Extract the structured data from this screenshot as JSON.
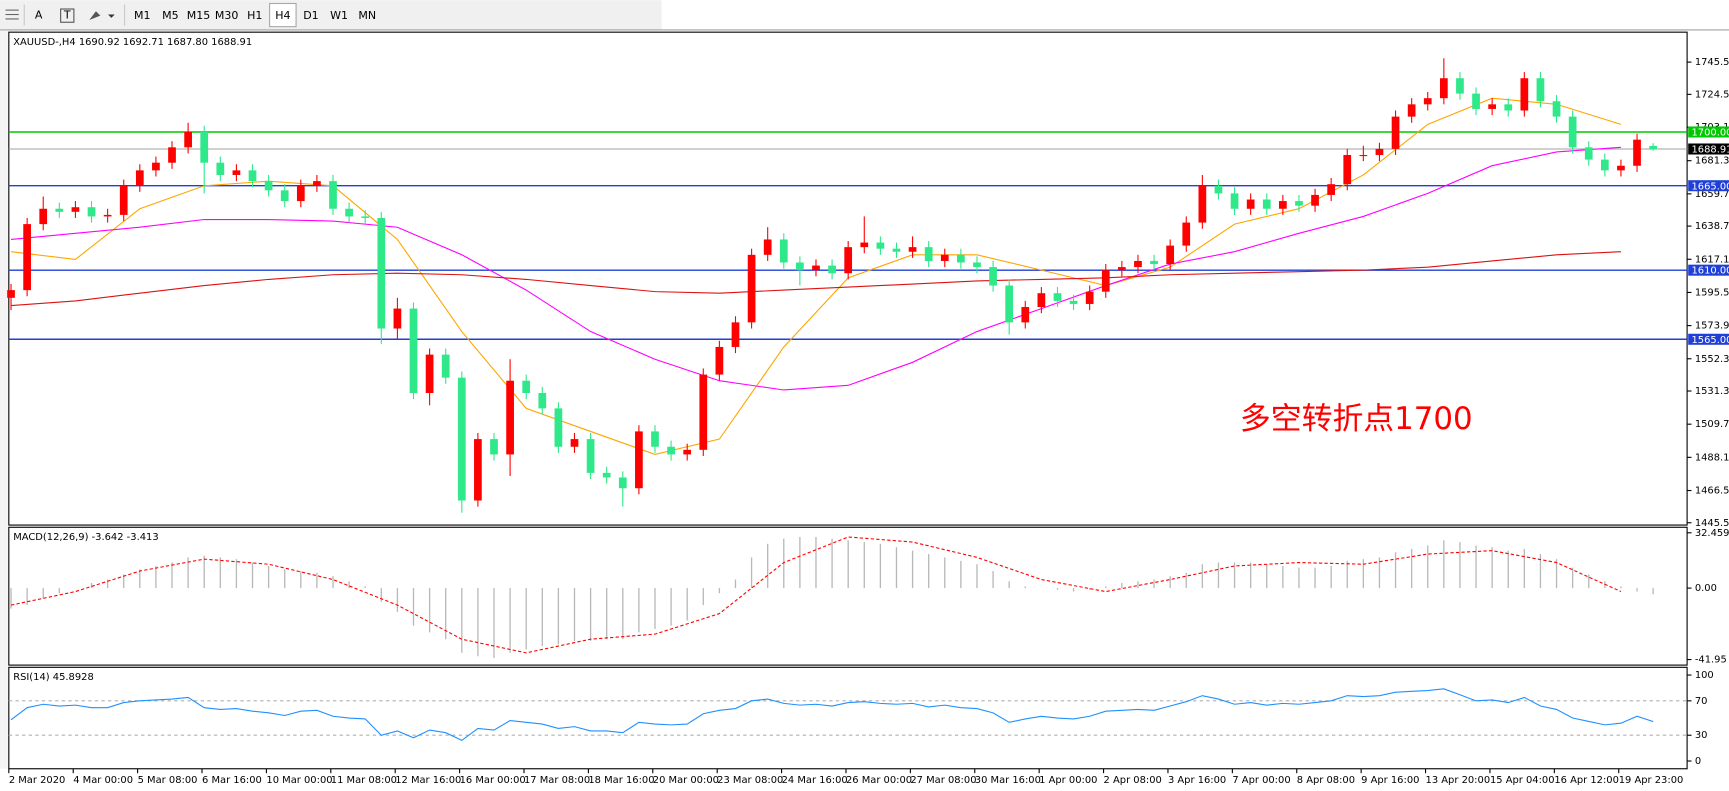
{
  "toolbar": {
    "tools": [
      "A",
      "T"
    ],
    "timeframes": [
      "M1",
      "M5",
      "M15",
      "M30",
      "H1",
      "H4",
      "D1",
      "W1",
      "MN"
    ],
    "active_index": 5
  },
  "chart_data": [
    {
      "type": "candlestick",
      "title": "XAUUSD-,H4  1690.92 1692.71 1687.80 1688.91",
      "categories": [
        "2 Mar 2020",
        "4 Mar 00:00",
        "5 Mar 08:00",
        "6 Mar 16:00",
        "10 Mar 00:00",
        "11 Mar 08:00",
        "12 Mar 16:00",
        "16 Mar 00:00",
        "17 Mar 08:00",
        "18 Mar 16:00",
        "20 Mar 00:00",
        "23 Mar 08:00",
        "24 Mar 16:00",
        "26 Mar 00:00",
        "27 Mar 08:00",
        "30 Mar 16:00",
        "1 Apr 00:00",
        "2 Apr 08:00",
        "3 Apr 16:00",
        "7 Apr 00:00",
        "8 Apr 08:00",
        "9 Apr 16:00",
        "13 Apr 20:00",
        "15 Apr 04:00",
        "16 Apr 12:00",
        "19 Apr 23:00"
      ],
      "up_color": "#ff0000",
      "down_color": "#2ee88a",
      "ohlc": [
        [
          1592,
          1601,
          1584,
          1597
        ],
        [
          1597,
          1644,
          1593,
          1640
        ],
        [
          1640,
          1658,
          1636,
          1650
        ],
        [
          1650,
          1654,
          1644,
          1648
        ],
        [
          1648,
          1655,
          1644,
          1651
        ],
        [
          1651,
          1655,
          1641,
          1645
        ],
        [
          1645,
          1650,
          1641,
          1646
        ],
        [
          1646,
          1669,
          1642,
          1665
        ],
        [
          1665,
          1679,
          1661,
          1675
        ],
        [
          1675,
          1684,
          1671,
          1680
        ],
        [
          1680,
          1694,
          1676,
          1690
        ],
        [
          1690,
          1706,
          1686,
          1700
        ],
        [
          1700,
          1704,
          1660,
          1680
        ],
        [
          1680,
          1684,
          1668,
          1672
        ],
        [
          1672,
          1679,
          1668,
          1675
        ],
        [
          1675,
          1679,
          1664,
          1668
        ],
        [
          1668,
          1672,
          1658,
          1662
        ],
        [
          1662,
          1666,
          1651,
          1655
        ],
        [
          1655,
          1669,
          1651,
          1665
        ],
        [
          1665,
          1672,
          1661,
          1668
        ],
        [
          1668,
          1672,
          1646,
          1650
        ],
        [
          1650,
          1654,
          1641,
          1645
        ],
        [
          1645,
          1649,
          1640,
          1644
        ],
        [
          1644,
          1648,
          1562,
          1572
        ],
        [
          1572,
          1592,
          1565,
          1585
        ],
        [
          1585,
          1589,
          1526,
          1530
        ],
        [
          1530,
          1559,
          1522,
          1555
        ],
        [
          1555,
          1559,
          1536,
          1540
        ],
        [
          1540,
          1544,
          1452,
          1460
        ],
        [
          1460,
          1504,
          1456,
          1500
        ],
        [
          1500,
          1504,
          1486,
          1490
        ],
        [
          1490,
          1552,
          1476,
          1538
        ],
        [
          1538,
          1542,
          1526,
          1530
        ],
        [
          1530,
          1534,
          1516,
          1520
        ],
        [
          1520,
          1524,
          1491,
          1495
        ],
        [
          1495,
          1504,
          1491,
          1500
        ],
        [
          1500,
          1504,
          1474,
          1478
        ],
        [
          1478,
          1482,
          1471,
          1475
        ],
        [
          1475,
          1479,
          1456,
          1468
        ],
        [
          1468,
          1509,
          1464,
          1505
        ],
        [
          1505,
          1509,
          1491,
          1495
        ],
        [
          1495,
          1499,
          1486,
          1490
        ],
        [
          1490,
          1497,
          1486,
          1493
        ],
        [
          1493,
          1546,
          1489,
          1542
        ],
        [
          1542,
          1564,
          1538,
          1560
        ],
        [
          1560,
          1580,
          1556,
          1576
        ],
        [
          1576,
          1624,
          1572,
          1620
        ],
        [
          1620,
          1638,
          1616,
          1630
        ],
        [
          1630,
          1634,
          1611,
          1615
        ],
        [
          1615,
          1619,
          1600,
          1610
        ],
        [
          1610,
          1617,
          1606,
          1613
        ],
        [
          1613,
          1617,
          1604,
          1608
        ],
        [
          1608,
          1629,
          1604,
          1625
        ],
        [
          1625,
          1645,
          1621,
          1628
        ],
        [
          1628,
          1632,
          1620,
          1624
        ],
        [
          1624,
          1628,
          1618,
          1622
        ],
        [
          1622,
          1632,
          1618,
          1625
        ],
        [
          1625,
          1629,
          1612,
          1616
        ],
        [
          1616,
          1624,
          1612,
          1620
        ],
        [
          1620,
          1624,
          1611,
          1615
        ],
        [
          1615,
          1619,
          1608,
          1612
        ],
        [
          1612,
          1616,
          1596,
          1600
        ],
        [
          1600,
          1604,
          1568,
          1576
        ],
        [
          1576,
          1590,
          1572,
          1586
        ],
        [
          1586,
          1599,
          1582,
          1595
        ],
        [
          1595,
          1599,
          1586,
          1590
        ],
        [
          1590,
          1594,
          1584,
          1588
        ],
        [
          1588,
          1600,
          1584,
          1596
        ],
        [
          1596,
          1614,
          1592,
          1610
        ],
        [
          1610,
          1616,
          1606,
          1612
        ],
        [
          1612,
          1620,
          1608,
          1616
        ],
        [
          1616,
          1620,
          1610,
          1614
        ],
        [
          1614,
          1630,
          1610,
          1626
        ],
        [
          1626,
          1645,
          1622,
          1641
        ],
        [
          1641,
          1672,
          1637,
          1665
        ],
        [
          1665,
          1669,
          1656,
          1660
        ],
        [
          1660,
          1664,
          1646,
          1650
        ],
        [
          1650,
          1660,
          1646,
          1656
        ],
        [
          1656,
          1660,
          1646,
          1650
        ],
        [
          1650,
          1659,
          1646,
          1655
        ],
        [
          1655,
          1659,
          1648,
          1652
        ],
        [
          1652,
          1663,
          1648,
          1659
        ],
        [
          1659,
          1670,
          1655,
          1666
        ],
        [
          1666,
          1689,
          1662,
          1685
        ],
        [
          1685,
          1691,
          1681,
          1685
        ],
        [
          1685,
          1693,
          1681,
          1689
        ],
        [
          1689,
          1714,
          1685,
          1710
        ],
        [
          1710,
          1722,
          1706,
          1718
        ],
        [
          1718,
          1726,
          1714,
          1722
        ],
        [
          1722,
          1748,
          1718,
          1735
        ],
        [
          1735,
          1739,
          1721,
          1725
        ],
        [
          1725,
          1729,
          1711,
          1715
        ],
        [
          1715,
          1722,
          1711,
          1718
        ],
        [
          1718,
          1722,
          1710,
          1714
        ],
        [
          1714,
          1739,
          1710,
          1735
        ],
        [
          1735,
          1739,
          1716,
          1720
        ],
        [
          1720,
          1724,
          1706,
          1710
        ],
        [
          1710,
          1714,
          1686,
          1690
        ],
        [
          1690,
          1694,
          1678,
          1682
        ],
        [
          1682,
          1686,
          1671,
          1675
        ],
        [
          1675,
          1682,
          1671,
          1678
        ],
        [
          1678,
          1699,
          1674,
          1695
        ],
        [
          1690.92,
          1692.71,
          1687.8,
          1688.91
        ]
      ],
      "series": [
        {
          "color": "#ffa500",
          "values": [
            1622,
            1617,
            1650,
            1665,
            1668,
            1665,
            1630,
            1570,
            1520,
            1505,
            1490,
            1500,
            1560,
            1605,
            1620,
            1620,
            1610,
            1600,
            1612,
            1640,
            1650,
            1672,
            1705,
            1722,
            1718,
            1705
          ]
        },
        {
          "color": "#ff00ff",
          "values": [
            1630,
            1634,
            1638,
            1643,
            1643,
            1642,
            1638,
            1620,
            1597,
            1570,
            1552,
            1538,
            1532,
            1535,
            1550,
            1570,
            1585,
            1600,
            1614,
            1622,
            1634,
            1645,
            1660,
            1678,
            1687,
            1690
          ]
        },
        {
          "color": "#dd1111",
          "values": [
            1587,
            1590,
            1595,
            1600,
            1604,
            1607,
            1608,
            1607,
            1604,
            1600,
            1596,
            1595,
            1597,
            1599,
            1601,
            1603,
            1604,
            1605,
            1607,
            1608,
            1609,
            1610,
            1612,
            1616,
            1620,
            1622
          ]
        }
      ],
      "ylim": [
        1444,
        1765
      ],
      "yticks": [
        {
          "value": 1745.5,
          "label": "1745.50"
        },
        {
          "value": 1724.5,
          "label": "1724.50"
        },
        {
          "value": 1703.1,
          "label": "1703.10"
        },
        {
          "value": 1681.3,
          "label": "1681.30"
        },
        {
          "value": 1659.7,
          "label": "1659.70"
        },
        {
          "value": 1638.7,
          "label": "1638.70"
        },
        {
          "value": 1617.1,
          "label": "1617.10"
        },
        {
          "value": 1595.5,
          "label": "1595.50"
        },
        {
          "value": 1573.9,
          "label": "1573.90"
        },
        {
          "value": 1552.3,
          "label": "1552.30"
        },
        {
          "value": 1531.3,
          "label": "1531.30"
        },
        {
          "value": 1509.7,
          "label": "1509.70"
        },
        {
          "value": 1488.1,
          "label": "1488.10"
        },
        {
          "value": 1466.5,
          "label": "1466.50"
        },
        {
          "value": 1445.5,
          "label": "1445.50"
        }
      ],
      "hlines": [
        {
          "value": 1700,
          "label": "1700.00",
          "color": "#00c800",
          "tag_color": "#00c800"
        },
        {
          "value": 1688.91,
          "label": "1688.91",
          "color": "#a0a0a0",
          "tag_color": "#000000"
        },
        {
          "value": 1665,
          "label": "1665.00",
          "color": "#1f3fd6",
          "tag_color": "#1f3fd6"
        },
        {
          "value": 1610,
          "label": "1610.00",
          "color": "#1f3fd6",
          "tag_color": "#1f3fd6"
        },
        {
          "value": 1565,
          "label": "1565.00",
          "color": "#1f3fd6",
          "tag_color": "#1f3fd6"
        }
      ],
      "annotation": {
        "text": "多空转折点1700",
        "color": "#ff0000"
      }
    },
    {
      "type": "macd",
      "title": "MACD(12,26,9) -3.642 -3.413",
      "color": "#b8b8b8",
      "values": [
        -12,
        -10,
        -6,
        -3,
        0,
        3,
        5,
        8,
        11,
        13,
        15,
        18,
        19,
        18,
        17,
        15,
        13,
        11,
        10,
        9,
        7,
        4,
        1,
        -8,
        -14,
        -22,
        -26,
        -30,
        -38,
        -40,
        -41,
        -38,
        -36,
        -34,
        -33,
        -31,
        -31,
        -30,
        -30,
        -26,
        -24,
        -22,
        -19,
        -10,
        -3,
        5,
        18,
        26,
        29,
        30,
        30,
        29,
        28,
        27,
        26,
        24,
        22,
        20,
        18,
        16,
        14,
        10,
        4,
        1,
        0,
        -1,
        -2,
        -1,
        1,
        3,
        4,
        5,
        7,
        9,
        14,
        15,
        15,
        15,
        14,
        13,
        12,
        12,
        13,
        16,
        17,
        18,
        21,
        23,
        25,
        28,
        27,
        25,
        24,
        22,
        23,
        20,
        17,
        12,
        8,
        4,
        1,
        -2,
        -3.642
      ],
      "series": [
        {
          "color": "#ff0000",
          "values": [
            -10,
            -2,
            10,
            17,
            14,
            5,
            -10,
            -30,
            -38,
            -30,
            -27,
            -15,
            15,
            30,
            27,
            18,
            5,
            -2,
            5,
            13,
            15,
            14,
            20,
            22,
            15,
            -2
          ]
        }
      ],
      "ylim": [
        -45.2,
        35.7
      ],
      "yticks": [
        32.459,
        {
          "value": 0,
          "label": "0.00"
        },
        -41.95
      ]
    },
    {
      "type": "rsi",
      "title": "RSI(14) 45.8928",
      "color": "#1e90ff",
      "values": [
        48,
        62,
        66,
        64,
        65,
        62,
        62,
        68,
        70,
        71,
        72,
        74,
        62,
        60,
        61,
        58,
        56,
        53,
        58,
        59,
        52,
        50,
        49,
        30,
        35,
        27,
        36,
        33,
        24,
        38,
        36,
        47,
        45,
        43,
        38,
        40,
        35,
        35,
        33,
        45,
        43,
        42,
        43,
        55,
        59,
        61,
        70,
        72,
        67,
        65,
        66,
        64,
        68,
        69,
        67,
        66,
        67,
        63,
        65,
        62,
        61,
        56,
        45,
        49,
        52,
        50,
        49,
        52,
        58,
        59,
        60,
        59,
        64,
        69,
        76,
        72,
        66,
        68,
        65,
        67,
        66,
        68,
        70,
        76,
        75,
        76,
        80,
        81,
        82,
        84,
        77,
        70,
        71,
        68,
        74,
        64,
        60,
        50,
        46,
        42,
        44,
        52,
        45.89
      ],
      "ylim": [
        -9,
        109
      ],
      "yticks": [
        0,
        30,
        70,
        100
      ],
      "levels": [
        30,
        70
      ]
    }
  ]
}
